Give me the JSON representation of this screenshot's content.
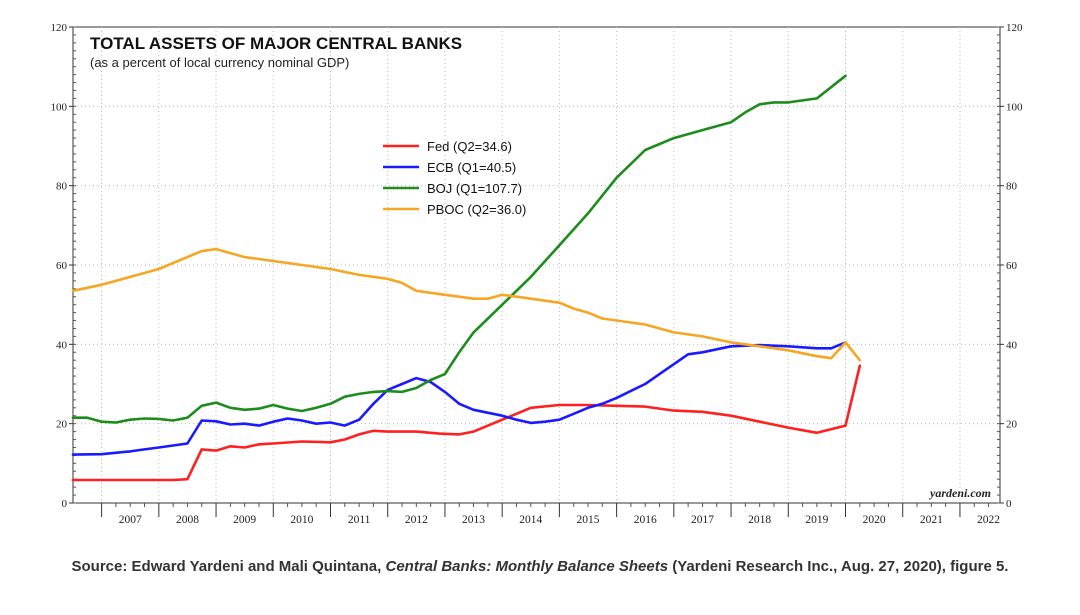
{
  "chart_data": {
    "type": "line",
    "title": "TOTAL ASSETS OF MAJOR CENTRAL BANKS",
    "subtitle": "(as a percent of local currency nominal GDP)",
    "ylim": [
      0,
      120
    ],
    "yticks": [
      "0",
      "20",
      "40",
      "60",
      "80",
      "100",
      "120"
    ],
    "x_labels": [
      "2007",
      "2008",
      "2009",
      "2010",
      "2011",
      "2012",
      "2013",
      "2014",
      "2015",
      "2016",
      "2017",
      "2018",
      "2019",
      "2020",
      "2021",
      "2022"
    ],
    "xlim": [
      2006.5,
      2022.7
    ],
    "grid": true,
    "legend_position": "upper-center",
    "watermark": "yardeni.com",
    "series": [
      {
        "name": "Fed (Q2=34.6)",
        "color": "#ff2020",
        "x": [
          2006.5,
          2007.0,
          2007.5,
          2008.0,
          2008.25,
          2008.5,
          2008.75,
          2009.0,
          2009.25,
          2009.5,
          2009.75,
          2010.0,
          2010.5,
          2011.0,
          2011.25,
          2011.5,
          2011.75,
          2012.0,
          2012.5,
          2012.9,
          2013.25,
          2013.5,
          2014.0,
          2014.25,
          2014.5,
          2015.0,
          2015.5,
          2016.0,
          2016.5,
          2017.0,
          2017.5,
          2018.0,
          2018.5,
          2019.0,
          2019.5,
          2020.0,
          2020.25
        ],
        "y": [
          5.8,
          5.8,
          5.8,
          5.8,
          5.8,
          6.0,
          13.5,
          13.2,
          14.3,
          14.0,
          14.8,
          15.0,
          15.5,
          15.3,
          16.0,
          17.3,
          18.2,
          18.0,
          18.0,
          17.5,
          17.3,
          18.0,
          21.0,
          22.5,
          24.0,
          24.7,
          24.7,
          24.5,
          24.3,
          23.3,
          23.0,
          22.0,
          20.5,
          19.0,
          17.7,
          19.5,
          34.6
        ]
      },
      {
        "name": "ECB (Q1=40.5)",
        "color": "#1a1aff",
        "x": [
          2006.5,
          2007.0,
          2007.5,
          2007.75,
          2008.0,
          2008.25,
          2008.5,
          2008.75,
          2009.0,
          2009.25,
          2009.5,
          2009.75,
          2010.0,
          2010.25,
          2010.5,
          2010.75,
          2011.0,
          2011.25,
          2011.5,
          2011.75,
          2012.0,
          2012.25,
          2012.5,
          2012.75,
          2013.0,
          2013.25,
          2013.5,
          2014.0,
          2014.25,
          2014.5,
          2014.75,
          2015.0,
          2015.25,
          2015.5,
          2015.75,
          2016.0,
          2016.5,
          2016.75,
          2017.0,
          2017.25,
          2017.5,
          2018.0,
          2018.5,
          2019.0,
          2019.5,
          2019.75,
          2020.0
        ],
        "y": [
          12.2,
          12.3,
          13.0,
          13.5,
          14.0,
          14.5,
          15.0,
          20.8,
          20.6,
          19.8,
          20.0,
          19.5,
          20.5,
          21.3,
          20.8,
          20.0,
          20.3,
          19.5,
          21.0,
          25.0,
          28.5,
          30.0,
          31.5,
          30.5,
          28.0,
          25.0,
          23.5,
          22.0,
          21.0,
          20.2,
          20.5,
          21.0,
          22.5,
          24.0,
          25.0,
          26.5,
          30.0,
          32.5,
          35.0,
          37.5,
          38.0,
          39.5,
          39.8,
          39.5,
          39.0,
          39.0,
          40.5
        ]
      },
      {
        "name": "BOJ (Q1=107.7)",
        "color": "#1c8c1c",
        "x": [
          2006.5,
          2006.75,
          2007.0,
          2007.25,
          2007.5,
          2007.75,
          2008.0,
          2008.25,
          2008.5,
          2008.75,
          2009.0,
          2009.25,
          2009.5,
          2009.75,
          2010.0,
          2010.25,
          2010.5,
          2010.75,
          2011.0,
          2011.25,
          2011.5,
          2011.75,
          2012.0,
          2012.25,
          2012.5,
          2012.75,
          2013.0,
          2013.25,
          2013.5,
          2014.0,
          2014.5,
          2015.0,
          2015.5,
          2016.0,
          2016.5,
          2017.0,
          2017.25,
          2017.5,
          2018.0,
          2018.25,
          2018.5,
          2018.75,
          2019.0,
          2019.5,
          2020.0
        ],
        "y": [
          21.5,
          21.5,
          20.5,
          20.3,
          21.0,
          21.3,
          21.2,
          20.8,
          21.5,
          24.5,
          25.3,
          24.0,
          23.5,
          23.8,
          24.7,
          23.8,
          23.2,
          24.0,
          25.0,
          26.8,
          27.5,
          28.0,
          28.2,
          28.0,
          29.0,
          31.0,
          32.5,
          38.0,
          43.0,
          50.0,
          57.0,
          65.0,
          73.0,
          82.0,
          89.0,
          92.0,
          93.0,
          94.0,
          96.0,
          98.5,
          100.5,
          101.0,
          101.0,
          102.0,
          107.7
        ]
      },
      {
        "name": "PBOC (Q2=36.0)",
        "color": "#f5a623",
        "x": [
          2006.5,
          2007.0,
          2007.5,
          2008.0,
          2008.5,
          2008.75,
          2009.0,
          2009.25,
          2009.5,
          2010.0,
          2010.5,
          2011.0,
          2011.5,
          2012.0,
          2012.25,
          2012.5,
          2013.0,
          2013.25,
          2013.5,
          2013.75,
          2014.0,
          2014.25,
          2014.5,
          2014.75,
          2015.0,
          2015.25,
          2015.5,
          2015.75,
          2016.0,
          2016.25,
          2016.5,
          2017.0,
          2017.25,
          2017.5,
          2018.0,
          2018.5,
          2019.0,
          2019.5,
          2019.75,
          2020.0,
          2020.25
        ],
        "y": [
          53.5,
          55.0,
          57.0,
          59.0,
          62.0,
          63.5,
          64.0,
          63.0,
          62.0,
          61.0,
          60.0,
          59.0,
          57.5,
          56.5,
          55.5,
          53.5,
          52.5,
          52.0,
          51.5,
          51.5,
          52.5,
          52.0,
          51.5,
          51.0,
          50.5,
          49.0,
          48.0,
          46.5,
          46.0,
          45.5,
          45.0,
          43.0,
          42.5,
          42.0,
          40.5,
          39.5,
          38.5,
          37.0,
          36.5,
          40.5,
          36.0
        ]
      }
    ]
  },
  "source": {
    "prefix": "Source: Edward Yardeni and Mali Quintana, ",
    "italic": "Central Banks: Monthly Balance Sheets",
    "suffix": " (Yardeni Research Inc., Aug. 27, 2020), figure 5."
  }
}
